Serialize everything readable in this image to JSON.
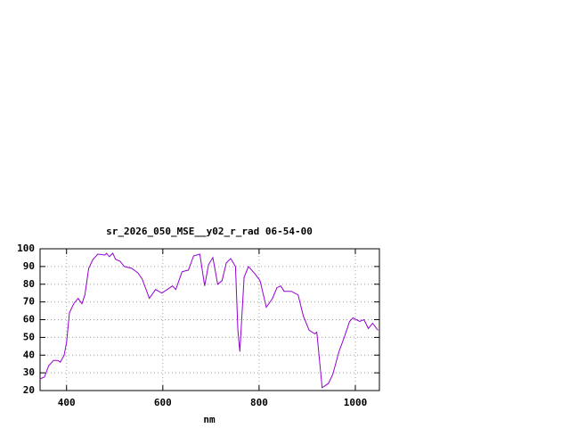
{
  "chart_data": {
    "type": "line",
    "title": "sr_2026_050_MSE__y02_r_rad 06-54-00",
    "x_label": "nm",
    "x": [
      345,
      354,
      363,
      373,
      382,
      387,
      395,
      400,
      406,
      415,
      424,
      432,
      438,
      446,
      455,
      465,
      480,
      483,
      489,
      496,
      502,
      511,
      520,
      535,
      548,
      557,
      572,
      585,
      598,
      609,
      620,
      627,
      640,
      653,
      664,
      677,
      687,
      695,
      704,
      714,
      723,
      732,
      741,
      751,
      756,
      760,
      769,
      778,
      791,
      802,
      815,
      828,
      837,
      845,
      852,
      867,
      881,
      892,
      904,
      916,
      920,
      931,
      944,
      953,
      966,
      977,
      988,
      995,
      1009,
      1018,
      1027,
      1036,
      1047
    ],
    "series": [
      {
        "name": "sr_2026_050_MSE__y02_r_rad",
        "color": "#9400d3",
        "values": [
          26.6,
          27.6,
          34,
          37,
          37,
          36,
          40,
          47,
          64,
          69,
          72,
          69,
          74,
          89,
          94,
          97,
          96.5,
          97.5,
          95.5,
          97.5,
          94,
          93,
          90,
          89,
          86.5,
          83,
          72,
          77,
          75,
          77,
          79,
          77,
          87,
          88,
          96,
          97,
          79,
          91,
          95,
          80,
          82,
          92,
          94.5,
          90,
          54,
          42,
          84,
          90,
          86,
          82,
          67,
          72,
          78,
          79,
          76,
          76,
          74,
          62,
          54,
          52,
          53,
          21.6,
          24,
          29,
          42,
          50,
          59,
          61,
          59,
          60,
          55,
          58,
          54
        ]
      }
    ],
    "xlim": [
      345,
      1050
    ],
    "ylim": [
      20,
      100
    ],
    "xticks": [
      400,
      600,
      800,
      1000
    ],
    "yticks": [
      20,
      30,
      40,
      50,
      60,
      70,
      80,
      90,
      100
    ],
    "grid": true
  }
}
